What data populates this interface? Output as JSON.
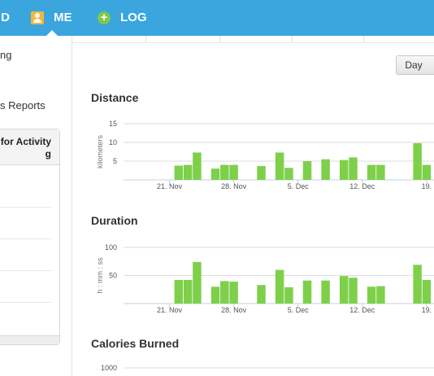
{
  "nav": {
    "cut_label": "D",
    "me_label": "ME",
    "log_label": "LOG",
    "log_symbol": "+"
  },
  "sidebar": {
    "link_1": "ng",
    "link_2": "s Reports",
    "panel_title_line1": "for Activity",
    "panel_title_line2": "g"
  },
  "toolbar": {
    "day_label": "Day"
  },
  "colors": {
    "nav": "#3aa6dd",
    "bar": "#7ed04b",
    "me_icon": "#f2b73c",
    "log_icon": "#7ec850"
  },
  "sections": {
    "distance": "Distance",
    "duration": "Duration",
    "calories": "Calories Burned"
  },
  "chart_data": [
    {
      "type": "bar",
      "title": "Distance",
      "ylabel": "kilometers",
      "yticks": [
        "15",
        "10",
        "5"
      ],
      "ylim": [
        0,
        15
      ],
      "xticks": [
        {
          "label": "21. Nov",
          "date": "2013-11-21"
        },
        {
          "label": "28. Nov",
          "date": "2013-11-28"
        },
        {
          "label": "5. Dec",
          "date": "2013-12-05"
        },
        {
          "label": "12. Dec",
          "date": "2013-12-12"
        },
        {
          "label": "19.",
          "date": "2013-12-19"
        }
      ],
      "x": [
        "2013-11-22",
        "2013-11-23",
        "2013-11-24",
        "2013-11-26",
        "2013-11-27",
        "2013-11-28",
        "2013-12-01",
        "2013-12-03",
        "2013-12-04",
        "2013-12-06",
        "2013-12-08",
        "2013-12-10",
        "2013-12-11",
        "2013-12-13",
        "2013-12-14",
        "2013-12-18",
        "2013-12-19"
      ],
      "values": [
        3.8,
        4.0,
        7.3,
        3.0,
        4.0,
        4.0,
        3.7,
        7.3,
        3.2,
        5.0,
        5.5,
        5.3,
        6.0,
        4.0,
        4.0,
        9.8,
        4.0
      ]
    },
    {
      "type": "bar",
      "title": "Duration",
      "ylabel": "h : mm : ss",
      "yticks": [
        "100",
        "50"
      ],
      "ylim": [
        0,
        100
      ],
      "xticks": [
        {
          "label": "21. Nov",
          "date": "2013-11-21"
        },
        {
          "label": "28. Nov",
          "date": "2013-11-28"
        },
        {
          "label": "5. Dec",
          "date": "2013-12-05"
        },
        {
          "label": "12. Dec",
          "date": "2013-12-12"
        },
        {
          "label": "19.",
          "date": "2013-12-19"
        }
      ],
      "x": [
        "2013-11-22",
        "2013-11-23",
        "2013-11-24",
        "2013-11-26",
        "2013-11-27",
        "2013-11-28",
        "2013-12-01",
        "2013-12-03",
        "2013-12-04",
        "2013-12-06",
        "2013-12-08",
        "2013-12-10",
        "2013-12-11",
        "2013-12-13",
        "2013-12-14",
        "2013-12-18",
        "2013-12-19"
      ],
      "values": [
        42,
        42,
        74,
        30,
        40,
        39,
        33,
        60,
        29,
        41,
        41,
        49,
        46,
        30,
        31,
        69,
        42
      ]
    },
    {
      "type": "bar",
      "title": "Calories Burned",
      "yticks": [
        "1000"
      ],
      "ylim": [
        0,
        1000
      ],
      "values": []
    }
  ]
}
